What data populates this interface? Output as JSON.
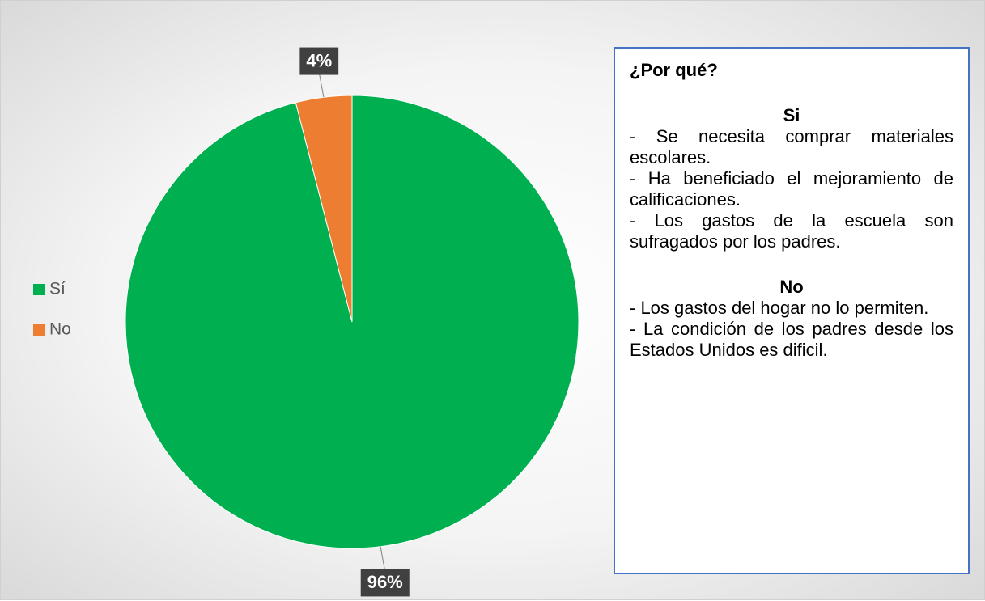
{
  "chart_data": {
    "type": "pie",
    "categories": [
      "Sí",
      "No"
    ],
    "values": [
      96,
      4
    ],
    "value_labels": [
      "96%",
      "4%"
    ],
    "colors": [
      "#00b050",
      "#ed7d31"
    ],
    "legend": "left"
  },
  "text_box": {
    "heading": "¿Por qué?",
    "sections": [
      {
        "title": "Si",
        "items": [
          "- Se necesita comprar materiales escolares.",
          "- Ha beneficiado el mejoramiento de calificaciones.",
          "- Los gastos de la escuela son sufragados por los padres."
        ]
      },
      {
        "title": "No",
        "items": [
          "- Los gastos del hogar no lo permiten.",
          "- La condición de los padres desde los Estados Unidos es dificil."
        ]
      }
    ]
  }
}
